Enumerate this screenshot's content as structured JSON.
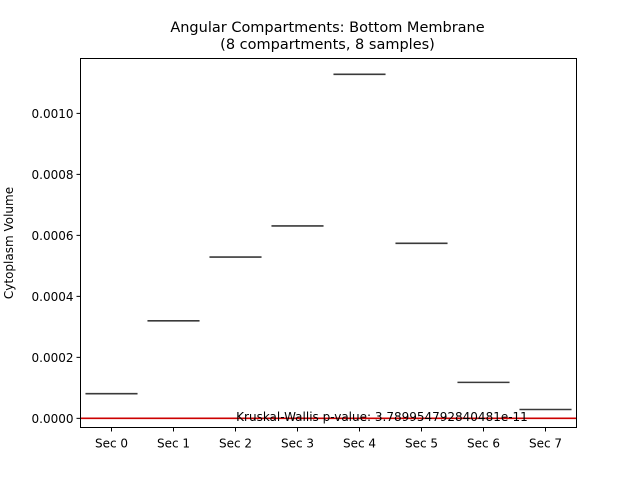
{
  "chart_data": {
    "type": "box",
    "title": "Angular Compartments: Bottom Membrane",
    "subtitle": "(8 compartments, 8 samples)",
    "xlabel": "",
    "ylabel": "Cytoplasm Volume",
    "categories": [
      "Sec 0",
      "Sec 1",
      "Sec 2",
      "Sec 3",
      "Sec 4",
      "Sec 5",
      "Sec 6",
      "Sec 7"
    ],
    "values": [
      8.1e-05,
      0.00032,
      0.000529,
      0.000631,
      0.001128,
      0.000574,
      0.000118,
      2.9e-05
    ],
    "ylim": [
      -3e-05,
      0.00118
    ],
    "yticks": [
      0,
      0.0002,
      0.0004,
      0.0006,
      0.0008,
      0.001
    ],
    "ytick_labels": [
      "0.0000",
      "0.0002",
      "0.0004",
      "0.0006",
      "0.0008",
      "0.0010"
    ],
    "reference_line": {
      "y": 0,
      "color": "#cc0000"
    },
    "annotation": "Kruskal-Wallis p-value: 3.789954792840481e-11",
    "grid": false,
    "legend": "none"
  }
}
